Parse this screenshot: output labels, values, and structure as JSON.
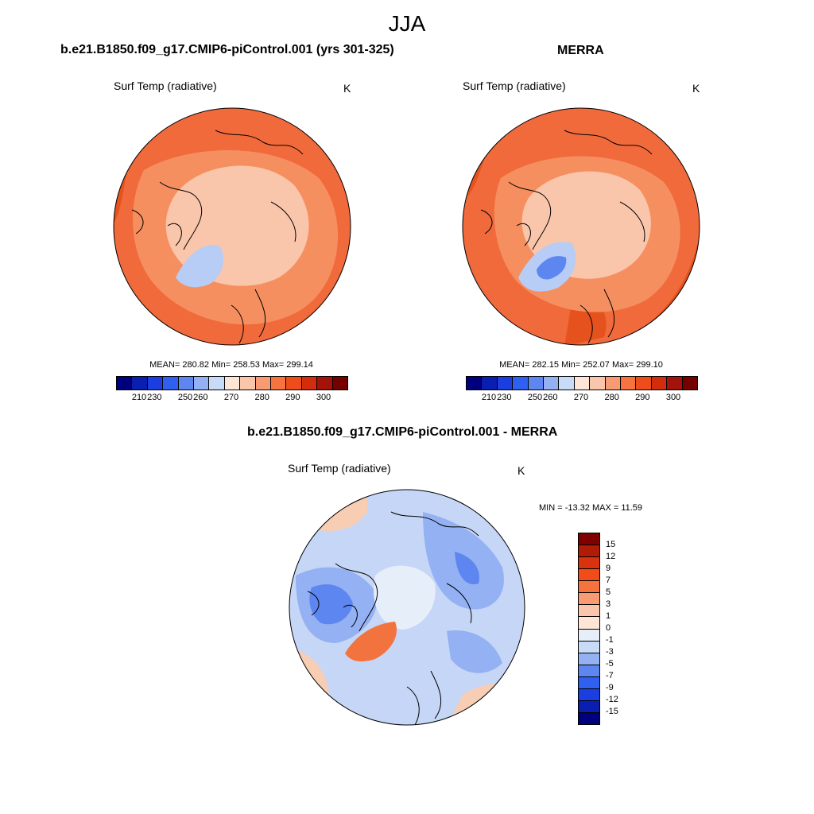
{
  "figure": {
    "season": "JJA",
    "var_name": "Surf Temp (radiative)",
    "units": "K"
  },
  "panels": [
    {
      "id": "model",
      "title": "b.e21.B1850.f09_g17.CMIP6-piControl.001 (yrs 301-325)",
      "stats": "MEAN= 280.82  Min= 258.53  Max= 299.14",
      "mean": 280.82,
      "min": 258.53,
      "max": 299.14
    },
    {
      "id": "obs",
      "title": "MERRA",
      "stats": "MEAN= 282.15  Min= 252.07  Max= 299.10",
      "mean": 282.15,
      "min": 252.07,
      "max": 299.1
    },
    {
      "id": "diff",
      "title": "b.e21.B1850.f09_g17.CMIP6-piControl.001 - MERRA",
      "stats": "MIN = -13.32 MAX =  11.59",
      "min": -13.32,
      "max": 11.59
    }
  ],
  "colorbars": {
    "absolute": {
      "colors": [
        "#00007f",
        "#0a1fb0",
        "#1a3ee0",
        "#3060f0",
        "#5d86f0",
        "#93b1f3",
        "#c9dcf7",
        "#fde6d6",
        "#fac6ab",
        "#f89b72",
        "#f5733e",
        "#ee4d1b",
        "#d42d0e",
        "#a4130a",
        "#760000"
      ],
      "tick_labels": [
        "210",
        "230",
        "250",
        "260",
        "270",
        "280",
        "290",
        "300"
      ],
      "tick_positions": [
        1,
        2,
        4,
        5,
        7,
        9,
        11,
        13
      ]
    },
    "difference": {
      "colors": [
        "#7f0000",
        "#b01c05",
        "#d8320e",
        "#f04d1b",
        "#f5733e",
        "#f89b72",
        "#fac6ab",
        "#fde6d6",
        "#e6eefa",
        "#c9dcf7",
        "#93b1f3",
        "#5d86f0",
        "#3060f0",
        "#1a3ee0",
        "#0a1fb0",
        "#00007f"
      ],
      "tick_labels": [
        "15",
        "12",
        "9",
        "7",
        "5",
        "3",
        "1",
        "0",
        "-1",
        "-3",
        "-5",
        "-7",
        "-9",
        "-12",
        "-15"
      ]
    }
  },
  "map_colors": {
    "abs_warm_outer": "#f06a3c",
    "abs_warm_mid": "#f68f60",
    "abs_cold_ocean": "#fac6ab",
    "abs_deep": "#e5521e",
    "greenland": "#b7cdf5",
    "diff_base": "#c6d6f6",
    "diff_mid": "#93b1f3",
    "diff_strong": "#5d86f0",
    "diff_center": "#e6eefa",
    "diff_warm": "#f2733e",
    "diff_pale": "#f7cdb4",
    "coast": "#000000"
  }
}
